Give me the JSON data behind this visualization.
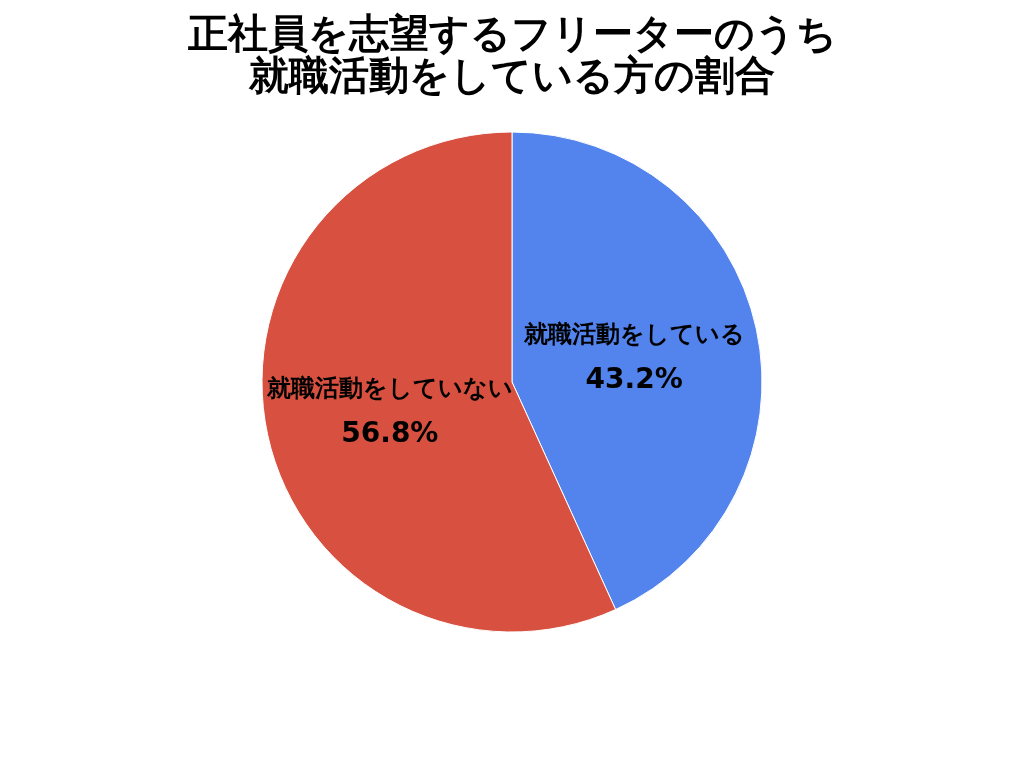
{
  "chart_data": {
    "type": "pie",
    "title": "正社員を志望するフリーターのうち就職活動をしている方の割合",
    "categories": [
      "就職活動をしている",
      "就職活動をしていない"
    ],
    "values": [
      43.2,
      56.8
    ],
    "colors": [
      "#5383ec",
      "#d85140"
    ],
    "value_labels": [
      "43.2%",
      "56.8%"
    ],
    "legend": false
  }
}
